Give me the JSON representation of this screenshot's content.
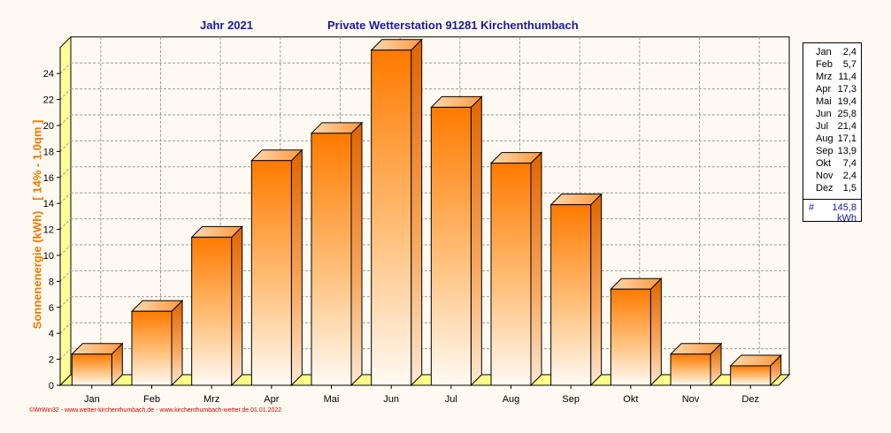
{
  "header": {
    "year_label": "Jahr  2021",
    "station_label": "Private Wetterstation 91281 Kirchenthumbach"
  },
  "chart_data": {
    "type": "bar",
    "title": "Private Wetterstation 91281 Kirchenthumbach",
    "ylabel": "Sonnenenergie  (kWh)",
    "ylabel_note": "[ 14% - 1.0qm ]",
    "categories": [
      "Jan",
      "Feb",
      "Mrz",
      "Apr",
      "Mai",
      "Jun",
      "Jul",
      "Aug",
      "Sep",
      "Okt",
      "Nov",
      "Dez"
    ],
    "values": [
      2.4,
      5.7,
      11.4,
      17.3,
      19.4,
      25.8,
      21.4,
      17.1,
      13.9,
      7.4,
      2.4,
      1.5
    ],
    "yticks": [
      "0",
      "2",
      "4",
      "6",
      "8",
      "10",
      "12",
      "14",
      "16",
      "18",
      "20",
      "22",
      "24"
    ],
    "ylim": [
      0,
      26
    ],
    "grid": true,
    "style": "3d-bar",
    "colors": {
      "bar_top": "#ff7a00",
      "bar_bottom": "#fff8f0",
      "floor": "#ffff88",
      "grid": "#999999"
    }
  },
  "legend": {
    "rows": [
      {
        "m": "Jan",
        "v": "2,4"
      },
      {
        "m": "Feb",
        "v": "5,7"
      },
      {
        "m": "Mrz",
        "v": "11,4"
      },
      {
        "m": "Apr",
        "v": "17,3"
      },
      {
        "m": "Mai",
        "v": "19,4"
      },
      {
        "m": "Jun",
        "v": "25,8"
      },
      {
        "m": "Jul",
        "v": "21,4"
      },
      {
        "m": "Aug",
        "v": "17,1"
      },
      {
        "m": "Sep",
        "v": "13,9"
      },
      {
        "m": "Okt",
        "v": "7,4"
      },
      {
        "m": "Nov",
        "v": "2,4"
      },
      {
        "m": "Dez",
        "v": "1,5"
      }
    ],
    "total_symbol": "#",
    "total": "145,8",
    "unit": "kWh"
  },
  "footer": "©WrWin32  -  www.wetter-kirchenthumbach.de  -  www.kirchenthumbach-wetter.de   01.01.2022"
}
